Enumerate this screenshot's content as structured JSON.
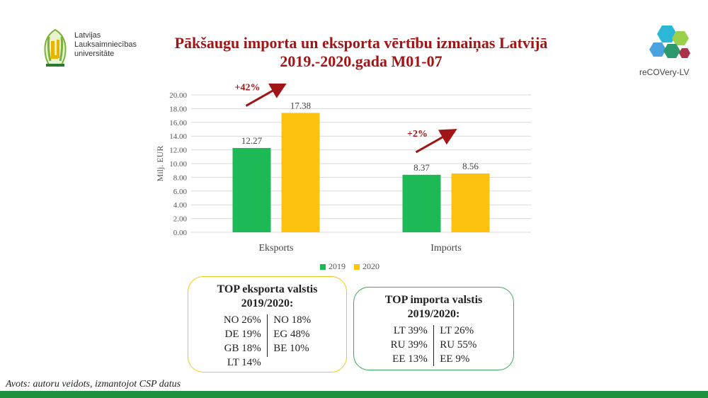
{
  "header": {
    "title_line1": "Pākšaugu importa un eksporta vērtību izmaiņas Latvijā",
    "title_line2": "2019.-2020.gada M01-07",
    "logo_left_text": "Latvijas\nLauksaimniecības\nuniversitāte",
    "logo_right_text": "reCOVery-LV"
  },
  "colors": {
    "title": "#a01516",
    "series_2019": "#1db954",
    "series_2020": "#fcc10f",
    "arrow": "#a01516",
    "export_box_border": "#f5c518",
    "import_box_border": "#3aaa5c",
    "footer": "#1e8f3c"
  },
  "chart_data": {
    "type": "bar",
    "categories": [
      "Eksports",
      "Imports"
    ],
    "series": [
      {
        "name": "2019",
        "values": [
          12.27,
          8.37
        ]
      },
      {
        "name": "2020",
        "values": [
          17.38,
          8.56
        ]
      }
    ],
    "value_labels": [
      [
        "12.27",
        "8.37"
      ],
      [
        "17.38",
        "8.56"
      ]
    ],
    "ylabel": "Milj. EUR",
    "ylim": [
      0,
      20
    ],
    "yticks": [
      "0.00",
      "2.00",
      "4.00",
      "6.00",
      "8.00",
      "10.00",
      "12.00",
      "14.00",
      "16.00",
      "18.00",
      "20.00"
    ],
    "grid": true,
    "legend_position": "bottom",
    "annotations": [
      "+42%",
      "+2%"
    ]
  },
  "export_box": {
    "title_line1": "TOP eksporta valstis",
    "title_line2": "2019/2020:",
    "left": [
      "NO 26%",
      "DE 19%",
      "GB 18%",
      "LT 14%"
    ],
    "right": [
      "NO 18%",
      "EG 48%",
      "BE 10%"
    ]
  },
  "import_box": {
    "title_line1": "TOP importa valstis",
    "title_line2": "2019/2020:",
    "left": [
      "LT 39%",
      "RU 39%",
      "EE 13%"
    ],
    "right": [
      "LT 26%",
      "RU 55%",
      "EE 9%"
    ]
  },
  "source": "Avots: autoru veidots, izmantojot CSP datus"
}
